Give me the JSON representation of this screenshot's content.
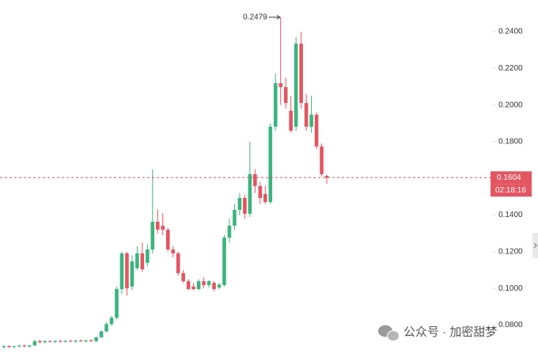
{
  "chart_data": {
    "type": "candlestick",
    "up_color": "#3bb47e",
    "down_color": "#e35561",
    "open": [
      0.068,
      0.0685,
      0.068,
      0.0684,
      0.0688,
      0.0683,
      0.0689,
      0.0712,
      0.0706,
      0.0712,
      0.0708,
      0.0713,
      0.0709,
      0.0714,
      0.071,
      0.0715,
      0.0711,
      0.0716,
      0.0712,
      0.0733,
      0.0765,
      0.0805,
      0.084,
      0.0996,
      0.1191,
      0.101,
      0.111,
      0.1191,
      0.114,
      0.1212,
      0.1363,
      0.1342,
      0.132,
      0.1212,
      0.1191,
      0.1083,
      0.1039,
      0.101,
      0.0996,
      0.1039,
      0.1018,
      0.103,
      0.1005,
      0.1018,
      0.1277,
      0.1342,
      0.1428,
      0.1493,
      0.1407,
      0.1623,
      0.1558,
      0.1515,
      0.1471,
      0.1882,
      0.2119,
      0.2098,
      0.1969,
      0.1882,
      0.2335,
      0.2011,
      0.1882,
      0.1947,
      0.1774,
      0.1614
    ],
    "high": [
      0.069,
      0.069,
      0.0688,
      0.0692,
      0.0694,
      0.069,
      0.072,
      0.072,
      0.0716,
      0.0718,
      0.0716,
      0.072,
      0.0717,
      0.0719,
      0.0718,
      0.0722,
      0.0719,
      0.0724,
      0.0737,
      0.077,
      0.0815,
      0.085,
      0.101,
      0.12,
      0.12,
      0.118,
      0.123,
      0.125,
      0.124,
      0.165,
      0.143,
      0.141,
      0.133,
      0.123,
      0.12,
      0.11,
      0.105,
      0.103,
      0.105,
      0.106,
      0.1045,
      0.104,
      0.103,
      0.129,
      0.138,
      0.146,
      0.152,
      0.151,
      0.18,
      0.165,
      0.158,
      0.156,
      0.19,
      0.217,
      0.2479,
      0.215,
      0.205,
      0.237,
      0.24,
      0.206,
      0.205,
      0.196,
      0.179,
      0.162
    ],
    "low": [
      0.0672,
      0.0676,
      0.0674,
      0.0678,
      0.068,
      0.0678,
      0.0685,
      0.07,
      0.07,
      0.0705,
      0.0702,
      0.0706,
      0.0703,
      0.0706,
      0.0704,
      0.0708,
      0.0705,
      0.0708,
      0.0708,
      0.0728,
      0.076,
      0.0795,
      0.083,
      0.097,
      0.096,
      0.099,
      0.11,
      0.109,
      0.112,
      0.119,
      0.13,
      0.129,
      0.12,
      0.117,
      0.107,
      0.103,
      0.099,
      0.099,
      0.099,
      0.1,
      0.1005,
      0.0985,
      0.0995,
      0.101,
      0.125,
      0.132,
      0.14,
      0.138,
      0.139,
      0.152,
      0.146,
      0.146,
      0.146,
      0.186,
      0.2,
      0.198,
      0.185,
      0.186,
      0.198,
      0.186,
      0.185,
      0.176,
      0.161,
      0.157
    ],
    "close": [
      0.0685,
      0.068,
      0.0684,
      0.0688,
      0.0683,
      0.0689,
      0.0712,
      0.0706,
      0.0712,
      0.0708,
      0.0713,
      0.0709,
      0.0714,
      0.071,
      0.0715,
      0.0711,
      0.0716,
      0.0712,
      0.0733,
      0.0765,
      0.0805,
      0.084,
      0.0996,
      0.1191,
      0.1,
      0.1147,
      0.1191,
      0.1104,
      0.1212,
      0.1363,
      0.132,
      0.132,
      0.1212,
      0.1191,
      0.1083,
      0.1039,
      0.0996,
      0.0996,
      0.1039,
      0.1018,
      0.1039,
      0.0996,
      0.102,
      0.1277,
      0.1342,
      0.1428,
      0.1493,
      0.1407,
      0.1623,
      0.1558,
      0.1493,
      0.1471,
      0.1882,
      0.2119,
      0.2098,
      0.2011,
      0.186,
      0.2335,
      0.2011,
      0.1882,
      0.1947,
      0.1774,
      0.1623,
      0.1604
    ],
    "ylim": [
      0.0642,
      0.2573
    ],
    "yticks": [
      {
        "value": 0.08,
        "label": "0.0800"
      },
      {
        "value": 0.1,
        "label": "0.1000"
      },
      {
        "value": 0.12,
        "label": "0.1200"
      },
      {
        "value": 0.14,
        "label": "0.1400"
      },
      {
        "value": 0.16,
        "label": "0.1600"
      },
      {
        "value": 0.18,
        "label": "0.1800"
      },
      {
        "value": 0.2,
        "label": "0.2000"
      },
      {
        "value": 0.22,
        "label": "0.2200"
      },
      {
        "value": 0.24,
        "label": "0.2400"
      }
    ],
    "max_index": 54,
    "countdown": "02:18:16"
  },
  "watermark": "公众号 · 加密甜梦"
}
